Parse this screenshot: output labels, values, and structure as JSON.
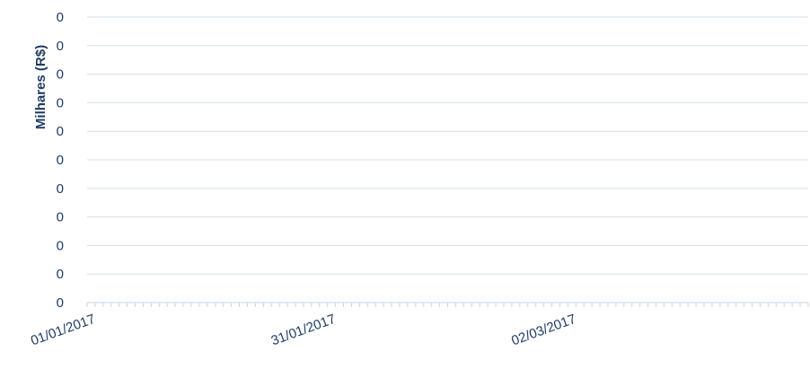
{
  "chart_data": {
    "type": "line",
    "title": "",
    "xlabel": "",
    "ylabel": "Milhares (R$)",
    "x_tick_labels": [
      "01/01/2017",
      "31/01/2017",
      "02/03/2017"
    ],
    "x_range": [
      "01/01/2017",
      "01/04/2017"
    ],
    "y_tick_labels": [
      "0",
      "0",
      "0",
      "0",
      "0",
      "0",
      "0",
      "0",
      "0",
      "0",
      "0"
    ],
    "series": [],
    "grid": true,
    "legend": "none"
  }
}
